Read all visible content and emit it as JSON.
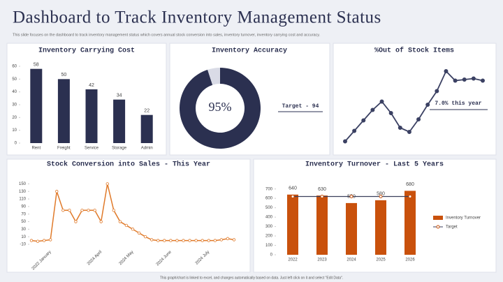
{
  "header": {
    "title": "Dashboard to Track Inventory Management Status",
    "subtitle": "This slide focuses on the dashboard to track inventory management status which covers annual stock conversion into sales, inventory turnover, inventory carrying cost and accuracy."
  },
  "footer": "This graph/chart is linked to excel, and changes automatically based on data. Just left click on it and select \"Edit Data\".",
  "chart_data": [
    {
      "type": "bar",
      "title": "Inventory Carrying Cost",
      "categories": [
        "Rent",
        "Freight",
        "Service",
        "Storage",
        "Admin"
      ],
      "values": [
        58,
        50,
        42,
        34,
        22
      ],
      "color": "#2b3050",
      "ylim": [
        0,
        60
      ],
      "yticks": [
        0,
        10,
        20,
        30,
        40,
        50,
        60
      ]
    },
    {
      "type": "donut",
      "title": "Inventory Accuracy",
      "values": [
        95,
        5
      ],
      "value_labels": [
        "95%",
        null
      ],
      "colors": [
        "#2b3050",
        "#d9dbe6"
      ],
      "annotation": "Target - 94"
    },
    {
      "type": "line",
      "title": "%Out of Stock Items",
      "values": [
        0.5,
        1.5,
        2.5,
        3.5,
        4.3,
        3.2,
        1.8,
        1.4,
        2.6,
        4,
        5.3,
        7.2,
        6.3,
        6.4,
        6.5,
        6.3
      ],
      "color": "#3b4163",
      "ylim": [
        0,
        8
      ],
      "annotation": "7.0% this year"
    },
    {
      "type": "line",
      "title": "Stock Conversion into Sales - This Year",
      "categories": [
        null,
        null,
        null,
        "2022 January",
        null,
        null,
        null,
        null,
        null,
        null,
        null,
        "2024 April",
        null,
        null,
        null,
        null,
        "2024 May",
        null,
        null,
        null,
        null,
        null,
        "2024 June",
        null,
        null,
        null,
        null,
        null,
        "2024 July",
        null,
        null,
        null,
        null
      ],
      "values": [
        0,
        -2,
        0,
        2,
        130,
        80,
        80,
        50,
        80,
        80,
        80,
        50,
        150,
        80,
        50,
        40,
        30,
        20,
        10,
        2,
        0,
        0,
        0,
        0,
        0,
        0,
        0,
        0,
        0,
        0,
        2,
        5,
        2
      ],
      "color": "#e07a2a",
      "ylim": [
        -10,
        160
      ],
      "yticks": [
        -10,
        10,
        30,
        50,
        70,
        90,
        110,
        130,
        150
      ]
    },
    {
      "type": "combo",
      "title": "Inventory Turnover - Last 5 Years",
      "categories": [
        "2022",
        "2023",
        "2024",
        "2025",
        "2026"
      ],
      "series": [
        {
          "name": "Inventory Turnover",
          "kind": "bar",
          "color": "#c9510c",
          "values": [
            640,
            630,
            550,
            580,
            680
          ]
        },
        {
          "name": "Target",
          "kind": "line",
          "color": "#3a3f5c",
          "values": [
            620,
            620,
            620,
            620,
            620
          ]
        }
      ],
      "ylim": [
        0,
        720
      ],
      "yticks": [
        0,
        100,
        200,
        300,
        400,
        500,
        600,
        700
      ]
    }
  ]
}
